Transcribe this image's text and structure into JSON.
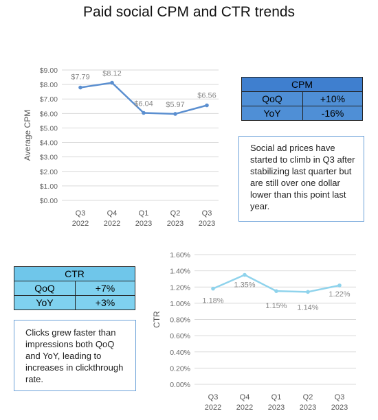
{
  "title": "Paid social CPM and CTR trends",
  "chart_data": [
    {
      "type": "line",
      "categories": [
        "Q3 2022",
        "Q4 2022",
        "Q1 2023",
        "Q2 2023",
        "Q3 2023"
      ],
      "category_lines": [
        [
          "Q3",
          "2022"
        ],
        [
          "Q4",
          "2022"
        ],
        [
          "Q1",
          "2023"
        ],
        [
          "Q2",
          "2023"
        ],
        [
          "Q3",
          "2023"
        ]
      ],
      "values": [
        7.79,
        8.12,
        6.04,
        5.97,
        6.56
      ],
      "data_labels": [
        "$7.79",
        "$8.12",
        "$6.04",
        "$5.97",
        "$6.56"
      ],
      "ylabel": "Average CPM",
      "ylim": [
        0,
        9
      ],
      "yticks": [
        "$0.00",
        "$1.00",
        "$2.00",
        "$3.00",
        "$4.00",
        "$5.00",
        "$6.00",
        "$7.00",
        "$8.00",
        "$9.00"
      ],
      "grid": true,
      "color": "#5b8fd0"
    },
    {
      "type": "line",
      "categories": [
        "Q3 2022",
        "Q4 2022",
        "Q1 2023",
        "Q2 2023",
        "Q3 2023"
      ],
      "category_lines": [
        [
          "Q3",
          "2022"
        ],
        [
          "Q4",
          "2022"
        ],
        [
          "Q1",
          "2023"
        ],
        [
          "Q2",
          "2023"
        ],
        [
          "Q3",
          "2023"
        ]
      ],
      "values": [
        1.18,
        1.35,
        1.15,
        1.14,
        1.22
      ],
      "data_labels": [
        "1.18%",
        "1.35%",
        "1.15%",
        "1.14%",
        "1.22%"
      ],
      "ylabel": "CTR",
      "ylim": [
        0,
        1.6
      ],
      "yticks": [
        "0.00%",
        "0.20%",
        "0.40%",
        "0.60%",
        "0.80%",
        "1.00%",
        "1.20%",
        "1.40%",
        "1.60%"
      ],
      "grid": true,
      "color": "#8fd3ec"
    }
  ],
  "cpm_table": {
    "header": "CPM",
    "rows": [
      {
        "label": "QoQ",
        "value": "+10%"
      },
      {
        "label": "YoY",
        "value": "-16%"
      }
    ]
  },
  "cpm_note": "Social ad prices have started to climb in Q3 after stabilizing last quarter but are still over one dollar lower than this point last year.",
  "ctr_table": {
    "header": "CTR",
    "rows": [
      {
        "label": "QoQ",
        "value": "+7%"
      },
      {
        "label": "YoY",
        "value": "+3%"
      }
    ]
  },
  "ctr_note": "Clicks grew faster than impressions both QoQ and YoY, leading to increases in clickthrough rate."
}
